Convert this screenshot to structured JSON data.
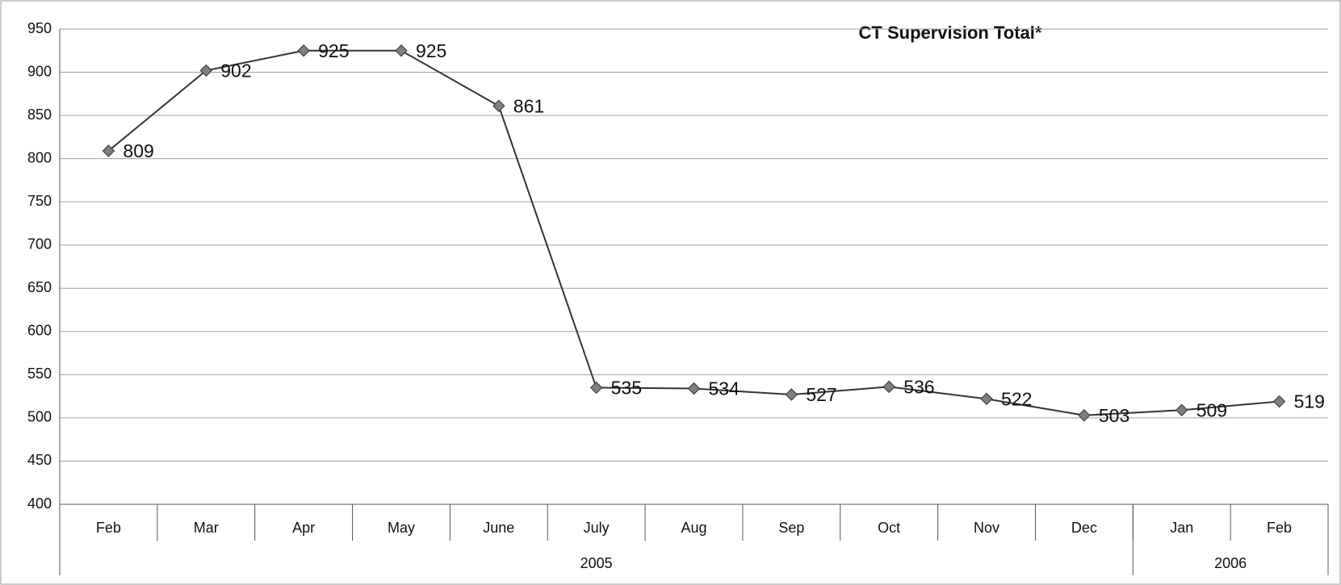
{
  "chart_data": {
    "type": "line",
    "title": "CT Supervision Total*",
    "categories": [
      "Feb",
      "Mar",
      "Apr",
      "May",
      "June",
      "July",
      "Aug",
      "Sep",
      "Oct",
      "Nov",
      "Dec",
      "Jan",
      "Feb"
    ],
    "category_groups": [
      {
        "label": "2005",
        "count": 11
      },
      {
        "label": "2006",
        "count": 2
      }
    ],
    "values": [
      809,
      902,
      925,
      925,
      861,
      535,
      534,
      527,
      536,
      522,
      503,
      509,
      519
    ],
    "color": "#333333",
    "marker_color": "#7f7f7f",
    "ylim": [
      400,
      950
    ],
    "yticks": [
      400,
      450,
      500,
      550,
      600,
      650,
      700,
      750,
      800,
      850,
      900,
      950
    ],
    "grid": true
  }
}
